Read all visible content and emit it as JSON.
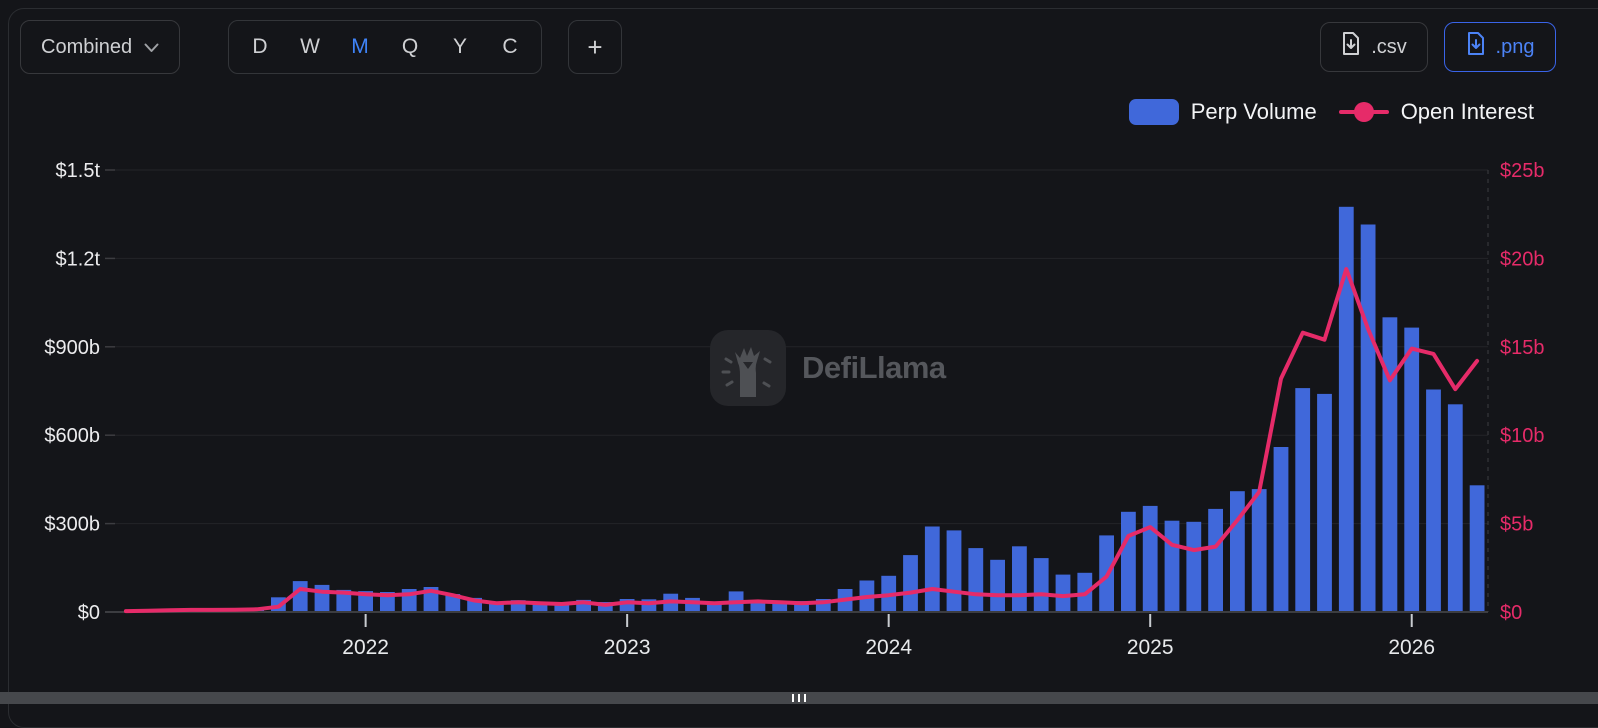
{
  "toolbar": {
    "grouping_label": "Combined",
    "intervals": [
      "D",
      "W",
      "M",
      "Q",
      "Y",
      "C"
    ],
    "active_interval": "M",
    "add_label": "+",
    "csv_label": ".csv",
    "png_label": ".png"
  },
  "legend": {
    "bar_item": "Perp Volume",
    "line_item": "Open Interest"
  },
  "watermark_text": "DefiLlama",
  "colors": {
    "bar_blue": "#4068da",
    "line_pink": "#e62b69",
    "accent_blue": "#3f83f8",
    "left_axis_text": "#ececee",
    "right_axis_text": "#e62b69",
    "year_text": "#e8eaec",
    "grid": "#232529",
    "axis_line": "#3c3d41",
    "tick_white": "#c8ccd0"
  },
  "chart_data": {
    "type": "bar",
    "title": "",
    "series": [
      {
        "name": "Perp Volume",
        "type": "bar",
        "unit": "USD billions",
        "start_month": "2021-08",
        "values": [
          14,
          50,
          105,
          92,
          75,
          71,
          68,
          78,
          85,
          61,
          48,
          30,
          40,
          34,
          27,
          41,
          34,
          44,
          43,
          62,
          48,
          34,
          70,
          37,
          31,
          37,
          44,
          78,
          107,
          123,
          193,
          290,
          277,
          217,
          177,
          223,
          183,
          127,
          133,
          260,
          340,
          360,
          310,
          306,
          350,
          410,
          417,
          560,
          760,
          740,
          1375,
          1315,
          1000,
          965,
          755,
          705,
          430
        ]
      },
      {
        "name": "Open Interest",
        "type": "line",
        "unit": "USD billions",
        "start_month": "2021-02",
        "values": [
          0.05,
          0.07,
          0.1,
          0.12,
          0.12,
          0.13,
          0.15,
          0.3,
          1.3,
          1.15,
          1.1,
          1.0,
          0.95,
          1.0,
          1.2,
          0.95,
          0.65,
          0.5,
          0.55,
          0.5,
          0.45,
          0.55,
          0.4,
          0.55,
          0.5,
          0.6,
          0.55,
          0.5,
          0.55,
          0.6,
          0.55,
          0.5,
          0.55,
          0.7,
          0.85,
          0.95,
          1.1,
          1.3,
          1.15,
          1.0,
          0.95,
          0.95,
          1.0,
          0.9,
          1.0,
          2.0,
          4.3,
          4.8,
          3.8,
          3.5,
          3.7,
          5.2,
          6.8,
          13.2,
          15.8,
          15.4,
          19.4,
          16.0,
          13.1,
          14.9,
          14.6,
          12.6,
          14.2
        ]
      }
    ],
    "x_ticks": [
      "2022",
      "2023",
      "2024",
      "2025",
      "2026"
    ],
    "left_axis": {
      "labels": [
        "$0",
        "$300b",
        "$600b",
        "$900b",
        "$1.2t",
        "$1.5t"
      ],
      "max": 1500,
      "unit": "USD billions"
    },
    "right_axis": {
      "labels": [
        "$0",
        "$5b",
        "$10b",
        "$15b",
        "$20b",
        "$25b"
      ],
      "max": 25,
      "unit": "USD billions"
    },
    "grid": true,
    "legend_position": "top-right"
  }
}
